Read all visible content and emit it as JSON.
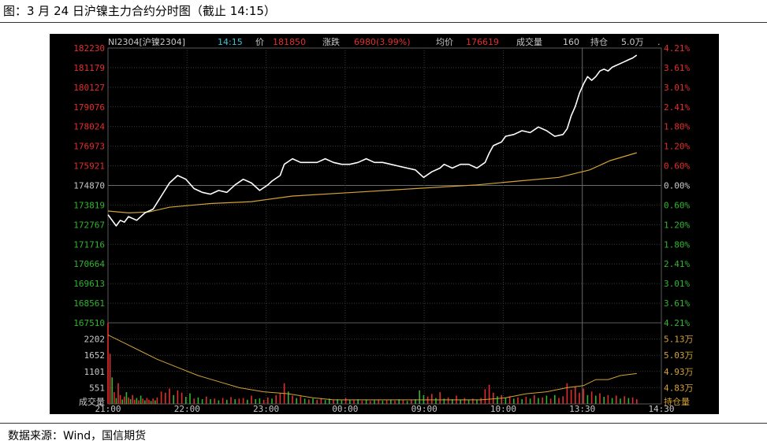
{
  "caption": "图：3 月 24 日沪镍主力合约分时图（截止 14:15）",
  "source": "数据来源：Wind，国信期货",
  "colors": {
    "background": "#000000",
    "price_line": "#ffffff",
    "avg_line": "#d4a334",
    "up": "#e32d2d",
    "down": "#2fb62f",
    "grid": "#3a3a3a",
    "cyan": "#37c5d6",
    "label_gray": "#c8c8c8"
  },
  "topbar": {
    "symbol": "NI2304[沪镍2304]",
    "time": "14:15",
    "price_label": "价",
    "price": "181850",
    "change_label": "涨跌",
    "change": "6980(3.99%)",
    "avg_label": "均价",
    "avg": "176619",
    "volume_label": "成交量",
    "volume": "160",
    "oi_label": "持仓",
    "oi": "5.0万",
    "dot": "."
  },
  "chart_data": {
    "type": "line",
    "x_ticks": [
      "21:00",
      "22:00",
      "23:00",
      "00:00",
      "09:00",
      "10:00",
      "13:30",
      "14:30"
    ],
    "price_axis": {
      "labels": [
        "182230",
        "181179",
        "180127",
        "179076",
        "178024",
        "176973",
        "175921",
        "174870",
        "173819",
        "172767",
        "171716",
        "170664",
        "169613",
        "168561",
        "167510"
      ],
      "min": 167510,
      "max": 182230,
      "reference": 174870
    },
    "pct_axis": {
      "labels": [
        "4.21%",
        "3.61%",
        "3.01%",
        "2.41%",
        "1.80%",
        "1.20%",
        "0.60%",
        "0.00%",
        "0.60%",
        "1.20%",
        "1.80%",
        "2.41%",
        "3.01%",
        "3.61%",
        "4.21%"
      ]
    },
    "volume_axis": {
      "labels": [
        "2202",
        "1652",
        "1101",
        "551"
      ],
      "title": "成交量",
      "max": 2752
    },
    "oi_axis": {
      "labels": [
        "5.13万",
        "5.03万",
        "4.93万",
        "4.83万"
      ],
      "title": "持仓量",
      "min": 4.78,
      "max": 5.18
    },
    "price_series": [
      [
        0,
        173300
      ],
      [
        2,
        173000
      ],
      [
        4,
        172700
      ],
      [
        6,
        173000
      ],
      [
        8,
        172900
      ],
      [
        10,
        173200
      ],
      [
        14,
        173000
      ],
      [
        18,
        173400
      ],
      [
        22,
        173600
      ],
      [
        26,
        174300
      ],
      [
        30,
        175000
      ],
      [
        34,
        175400
      ],
      [
        38,
        175200
      ],
      [
        42,
        174700
      ],
      [
        46,
        174500
      ],
      [
        50,
        174400
      ],
      [
        54,
        174600
      ],
      [
        58,
        174500
      ],
      [
        62,
        174900
      ],
      [
        66,
        175200
      ],
      [
        70,
        175000
      ],
      [
        74,
        174600
      ],
      [
        78,
        174900
      ],
      [
        80,
        175100
      ],
      [
        84,
        175400
      ],
      [
        86,
        176000
      ],
      [
        90,
        176300
      ],
      [
        94,
        176100
      ],
      [
        98,
        176100
      ],
      [
        102,
        176100
      ],
      [
        106,
        176300
      ],
      [
        110,
        176100
      ],
      [
        114,
        176000
      ],
      [
        118,
        176000
      ],
      [
        122,
        176100
      ],
      [
        126,
        176300
      ],
      [
        130,
        176100
      ],
      [
        134,
        176100
      ],
      [
        138,
        176000
      ],
      [
        142,
        175900
      ],
      [
        146,
        175800
      ],
      [
        150,
        175700
      ],
      [
        152,
        175500
      ],
      [
        154,
        175300
      ],
      [
        158,
        175600
      ],
      [
        162,
        175800
      ],
      [
        164,
        176000
      ],
      [
        168,
        175800
      ],
      [
        172,
        176000
      ],
      [
        176,
        176000
      ],
      [
        180,
        175800
      ],
      [
        184,
        176100
      ],
      [
        186,
        176600
      ],
      [
        188,
        177000
      ],
      [
        190,
        177100
      ],
      [
        192,
        177200
      ],
      [
        194,
        177500
      ],
      [
        198,
        177600
      ],
      [
        202,
        177800
      ],
      [
        206,
        177700
      ],
      [
        210,
        178000
      ],
      [
        214,
        177800
      ],
      [
        218,
        177500
      ],
      [
        222,
        177600
      ],
      [
        224,
        177900
      ],
      [
        226,
        178600
      ],
      [
        228,
        179100
      ],
      [
        230,
        179800
      ],
      [
        232,
        180300
      ],
      [
        234,
        180700
      ],
      [
        236,
        180500
      ],
      [
        238,
        180700
      ],
      [
        240,
        181000
      ],
      [
        242,
        181100
      ],
      [
        244,
        181000
      ],
      [
        246,
        181200
      ],
      [
        248,
        181300
      ],
      [
        250,
        181400
      ],
      [
        252,
        181500
      ],
      [
        254,
        181600
      ],
      [
        256,
        181700
      ],
      [
        258,
        181850
      ]
    ],
    "avg_series": [
      [
        0,
        173500
      ],
      [
        10,
        173400
      ],
      [
        20,
        173450
      ],
      [
        30,
        173700
      ],
      [
        50,
        173900
      ],
      [
        70,
        174000
      ],
      [
        90,
        174300
      ],
      [
        120,
        174500
      ],
      [
        150,
        174700
      ],
      [
        180,
        174900
      ],
      [
        200,
        175100
      ],
      [
        220,
        175300
      ],
      [
        235,
        175700
      ],
      [
        245,
        176200
      ],
      [
        258,
        176619
      ]
    ],
    "oi_series": [
      [
        0,
        5.12
      ],
      [
        8,
        5.08
      ],
      [
        16,
        5.04
      ],
      [
        24,
        5.0
      ],
      [
        34,
        4.96
      ],
      [
        44,
        4.92
      ],
      [
        54,
        4.89
      ],
      [
        64,
        4.86
      ],
      [
        76,
        4.84
      ],
      [
        88,
        4.83
      ],
      [
        100,
        4.81
      ],
      [
        110,
        4.8
      ],
      [
        118,
        4.8
      ],
      [
        130,
        4.8
      ],
      [
        150,
        4.8
      ],
      [
        170,
        4.8
      ],
      [
        182,
        4.8
      ],
      [
        194,
        4.81
      ],
      [
        204,
        4.83
      ],
      [
        214,
        4.84
      ],
      [
        224,
        4.86
      ],
      [
        232,
        4.87
      ],
      [
        238,
        4.9
      ],
      [
        244,
        4.9
      ],
      [
        250,
        4.92
      ],
      [
        258,
        4.93
      ]
    ],
    "volume_bars": [
      [
        0,
        2750,
        1
      ],
      [
        1,
        1700,
        1
      ],
      [
        2,
        900,
        0
      ],
      [
        3,
        400,
        1
      ],
      [
        4,
        200,
        0
      ],
      [
        5,
        700,
        1
      ],
      [
        6,
        300,
        1
      ],
      [
        7,
        150,
        0
      ],
      [
        8,
        250,
        1
      ],
      [
        9,
        400,
        0
      ],
      [
        10,
        220,
        1
      ],
      [
        11,
        160,
        0
      ],
      [
        12,
        300,
        1
      ],
      [
        13,
        140,
        1
      ],
      [
        14,
        200,
        0
      ],
      [
        15,
        120,
        1
      ],
      [
        16,
        280,
        0
      ],
      [
        17,
        180,
        1
      ],
      [
        18,
        120,
        0
      ],
      [
        19,
        200,
        1
      ],
      [
        20,
        140,
        1
      ],
      [
        21,
        100,
        0
      ],
      [
        22,
        180,
        1
      ],
      [
        23,
        120,
        0
      ],
      [
        24,
        220,
        1
      ],
      [
        26,
        420,
        1
      ],
      [
        28,
        380,
        1
      ],
      [
        30,
        520,
        1
      ],
      [
        32,
        300,
        0
      ],
      [
        34,
        460,
        1
      ],
      [
        36,
        380,
        1
      ],
      [
        38,
        240,
        0
      ],
      [
        40,
        360,
        0
      ],
      [
        42,
        180,
        1
      ],
      [
        44,
        220,
        0
      ],
      [
        46,
        160,
        0
      ],
      [
        48,
        250,
        1
      ],
      [
        50,
        160,
        0
      ],
      [
        52,
        180,
        1
      ],
      [
        54,
        120,
        0
      ],
      [
        56,
        200,
        1
      ],
      [
        58,
        140,
        0
      ],
      [
        60,
        230,
        1
      ],
      [
        62,
        160,
        0
      ],
      [
        64,
        180,
        1
      ],
      [
        66,
        200,
        1
      ],
      [
        68,
        140,
        0
      ],
      [
        70,
        280,
        1
      ],
      [
        72,
        160,
        0
      ],
      [
        74,
        190,
        0
      ],
      [
        76,
        140,
        1
      ],
      [
        78,
        220,
        1
      ],
      [
        80,
        180,
        0
      ],
      [
        82,
        300,
        1
      ],
      [
        84,
        360,
        1
      ],
      [
        86,
        700,
        1
      ],
      [
        88,
        420,
        0
      ],
      [
        90,
        280,
        1
      ],
      [
        92,
        200,
        0
      ],
      [
        94,
        260,
        1
      ],
      [
        96,
        180,
        0
      ],
      [
        98,
        150,
        1
      ],
      [
        100,
        180,
        0
      ],
      [
        102,
        140,
        1
      ],
      [
        104,
        200,
        1
      ],
      [
        106,
        130,
        0
      ],
      [
        108,
        180,
        0
      ],
      [
        110,
        120,
        1
      ],
      [
        112,
        160,
        0
      ],
      [
        114,
        120,
        0
      ],
      [
        116,
        200,
        1
      ],
      [
        118,
        140,
        0
      ],
      [
        120,
        120,
        1
      ],
      [
        122,
        160,
        0
      ],
      [
        124,
        110,
        1
      ],
      [
        126,
        150,
        0
      ],
      [
        128,
        100,
        1
      ],
      [
        130,
        120,
        0
      ],
      [
        132,
        150,
        1
      ],
      [
        134,
        110,
        0
      ],
      [
        136,
        120,
        1
      ],
      [
        138,
        140,
        0
      ],
      [
        140,
        110,
        1
      ],
      [
        142,
        160,
        0
      ],
      [
        144,
        120,
        1
      ],
      [
        146,
        100,
        0
      ],
      [
        148,
        140,
        1
      ],
      [
        150,
        160,
        0
      ],
      [
        152,
        460,
        0
      ],
      [
        154,
        300,
        0
      ],
      [
        156,
        250,
        1
      ],
      [
        158,
        340,
        1
      ],
      [
        160,
        200,
        0
      ],
      [
        162,
        400,
        1
      ],
      [
        164,
        180,
        0
      ],
      [
        166,
        220,
        1
      ],
      [
        168,
        160,
        0
      ],
      [
        170,
        280,
        1
      ],
      [
        172,
        150,
        0
      ],
      [
        174,
        200,
        1
      ],
      [
        176,
        140,
        0
      ],
      [
        178,
        180,
        1
      ],
      [
        180,
        150,
        0
      ],
      [
        182,
        200,
        1
      ],
      [
        184,
        500,
        1
      ],
      [
        186,
        650,
        1
      ],
      [
        188,
        380,
        1
      ],
      [
        190,
        260,
        0
      ],
      [
        192,
        300,
        1
      ],
      [
        194,
        220,
        0
      ],
      [
        196,
        260,
        1
      ],
      [
        198,
        180,
        0
      ],
      [
        200,
        220,
        1
      ],
      [
        202,
        160,
        0
      ],
      [
        204,
        240,
        1
      ],
      [
        206,
        180,
        0
      ],
      [
        208,
        300,
        1
      ],
      [
        210,
        200,
        0
      ],
      [
        212,
        220,
        1
      ],
      [
        214,
        280,
        0
      ],
      [
        216,
        180,
        1
      ],
      [
        218,
        300,
        0
      ],
      [
        220,
        200,
        1
      ],
      [
        222,
        260,
        1
      ],
      [
        224,
        700,
        1
      ],
      [
        226,
        480,
        1
      ],
      [
        228,
        600,
        1
      ],
      [
        230,
        380,
        1
      ],
      [
        232,
        520,
        1
      ],
      [
        234,
        300,
        0
      ],
      [
        236,
        420,
        1
      ],
      [
        238,
        280,
        0
      ],
      [
        240,
        360,
        1
      ],
      [
        242,
        240,
        0
      ],
      [
        244,
        300,
        1
      ],
      [
        246,
        200,
        0
      ],
      [
        248,
        280,
        1
      ],
      [
        250,
        180,
        0
      ],
      [
        252,
        260,
        1
      ],
      [
        254,
        200,
        0
      ],
      [
        256,
        220,
        1
      ],
      [
        258,
        160,
        1
      ]
    ]
  }
}
